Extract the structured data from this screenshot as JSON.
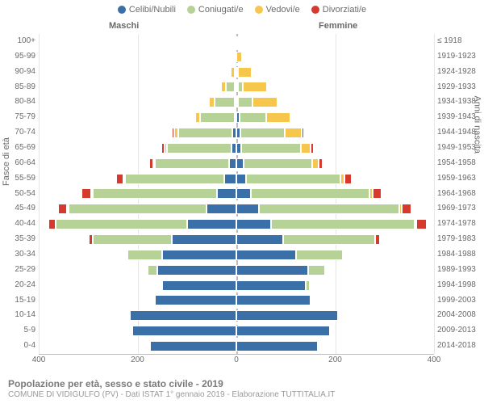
{
  "legend": {
    "items": [
      {
        "label": "Celibi/Nubili",
        "color": "#3a6fa7"
      },
      {
        "label": "Coniugati/e",
        "color": "#b6d296"
      },
      {
        "label": "Vedovi/e",
        "color": "#f7c64d"
      },
      {
        "label": "Divorziati/e",
        "color": "#d63a2f"
      }
    ]
  },
  "headers": {
    "male": "Maschi",
    "female": "Femmine"
  },
  "axis_left_label": "Fasce di età",
  "axis_right_label": "Anni di nascita",
  "title": "Popolazione per età, sesso e stato civile - 2019",
  "subtitle": "COMUNE DI VIDIGULFO (PV) - Dati ISTAT 1° gennaio 2019 - Elaborazione TUTTITALIA.IT",
  "chart": {
    "type": "population-pyramid",
    "xmax": 400,
    "xticks": [
      400,
      200,
      0,
      200,
      400
    ],
    "background_color": "#ffffff",
    "grid_color": "#e6e6e6",
    "center_line_color": "#bcbcbc",
    "colors": {
      "single": "#3a6fa7",
      "married": "#b6d296",
      "widowed": "#f7c64d",
      "divorced": "#d63a2f"
    },
    "age_bins": [
      {
        "age": "100+",
        "years": "≤ 1918",
        "m": {
          "s": 0,
          "c": 0,
          "w": 0,
          "d": 0
        },
        "f": {
          "s": 0,
          "c": 0,
          "w": 2,
          "d": 0
        }
      },
      {
        "age": "95-99",
        "years": "1919-1923",
        "m": {
          "s": 0,
          "c": 0,
          "w": 4,
          "d": 0
        },
        "f": {
          "s": 0,
          "c": 0,
          "w": 12,
          "d": 0
        }
      },
      {
        "age": "90-94",
        "years": "1924-1928",
        "m": {
          "s": 0,
          "c": 4,
          "w": 8,
          "d": 0
        },
        "f": {
          "s": 0,
          "c": 2,
          "w": 28,
          "d": 0
        }
      },
      {
        "age": "85-89",
        "years": "1929-1933",
        "m": {
          "s": 2,
          "c": 18,
          "w": 10,
          "d": 0
        },
        "f": {
          "s": 2,
          "c": 10,
          "w": 48,
          "d": 0
        }
      },
      {
        "age": "80-84",
        "years": "1934-1938",
        "m": {
          "s": 4,
          "c": 40,
          "w": 12,
          "d": 2
        },
        "f": {
          "s": 4,
          "c": 28,
          "w": 52,
          "d": 2
        }
      },
      {
        "age": "75-79",
        "years": "1939-1943",
        "m": {
          "s": 4,
          "c": 70,
          "w": 10,
          "d": 2
        },
        "f": {
          "s": 6,
          "c": 55,
          "w": 48,
          "d": 2
        }
      },
      {
        "age": "70-74",
        "years": "1944-1948",
        "m": {
          "s": 8,
          "c": 110,
          "w": 8,
          "d": 4
        },
        "f": {
          "s": 8,
          "c": 90,
          "w": 35,
          "d": 4
        }
      },
      {
        "age": "65-69",
        "years": "1949-1953",
        "m": {
          "s": 10,
          "c": 130,
          "w": 6,
          "d": 6
        },
        "f": {
          "s": 10,
          "c": 120,
          "w": 20,
          "d": 6
        }
      },
      {
        "age": "60-64",
        "years": "1954-1958",
        "m": {
          "s": 15,
          "c": 150,
          "w": 4,
          "d": 8
        },
        "f": {
          "s": 14,
          "c": 140,
          "w": 12,
          "d": 8
        }
      },
      {
        "age": "55-59",
        "years": "1959-1963",
        "m": {
          "s": 25,
          "c": 200,
          "w": 4,
          "d": 15
        },
        "f": {
          "s": 20,
          "c": 190,
          "w": 8,
          "d": 15
        }
      },
      {
        "age": "50-54",
        "years": "1964-1968",
        "m": {
          "s": 40,
          "c": 250,
          "w": 2,
          "d": 20
        },
        "f": {
          "s": 30,
          "c": 240,
          "w": 6,
          "d": 18
        }
      },
      {
        "age": "45-49",
        "years": "1969-1973",
        "m": {
          "s": 60,
          "c": 280,
          "w": 2,
          "d": 18
        },
        "f": {
          "s": 45,
          "c": 285,
          "w": 4,
          "d": 20
        }
      },
      {
        "age": "40-44",
        "years": "1974-1978",
        "m": {
          "s": 100,
          "c": 265,
          "w": 0,
          "d": 15
        },
        "f": {
          "s": 70,
          "c": 290,
          "w": 2,
          "d": 22
        }
      },
      {
        "age": "35-39",
        "years": "1979-1983",
        "m": {
          "s": 130,
          "c": 160,
          "w": 0,
          "d": 8
        },
        "f": {
          "s": 95,
          "c": 185,
          "w": 0,
          "d": 10
        }
      },
      {
        "age": "30-34",
        "years": "1984-1988",
        "m": {
          "s": 150,
          "c": 70,
          "w": 0,
          "d": 2
        },
        "f": {
          "s": 120,
          "c": 95,
          "w": 0,
          "d": 4
        }
      },
      {
        "age": "25-29",
        "years": "1989-1993",
        "m": {
          "s": 160,
          "c": 20,
          "w": 0,
          "d": 0
        },
        "f": {
          "s": 145,
          "c": 35,
          "w": 0,
          "d": 2
        }
      },
      {
        "age": "20-24",
        "years": "1994-1998",
        "m": {
          "s": 150,
          "c": 4,
          "w": 0,
          "d": 0
        },
        "f": {
          "s": 140,
          "c": 8,
          "w": 0,
          "d": 0
        }
      },
      {
        "age": "15-19",
        "years": "1999-2003",
        "m": {
          "s": 165,
          "c": 0,
          "w": 0,
          "d": 0
        },
        "f": {
          "s": 150,
          "c": 0,
          "w": 0,
          "d": 0
        }
      },
      {
        "age": "10-14",
        "years": "2004-2008",
        "m": {
          "s": 215,
          "c": 0,
          "w": 0,
          "d": 0
        },
        "f": {
          "s": 205,
          "c": 0,
          "w": 0,
          "d": 0
        }
      },
      {
        "age": "5-9",
        "years": "2009-2013",
        "m": {
          "s": 210,
          "c": 0,
          "w": 0,
          "d": 0
        },
        "f": {
          "s": 190,
          "c": 0,
          "w": 0,
          "d": 0
        }
      },
      {
        "age": "0-4",
        "years": "2014-2018",
        "m": {
          "s": 175,
          "c": 0,
          "w": 0,
          "d": 0
        },
        "f": {
          "s": 165,
          "c": 0,
          "w": 0,
          "d": 0
        }
      }
    ]
  }
}
